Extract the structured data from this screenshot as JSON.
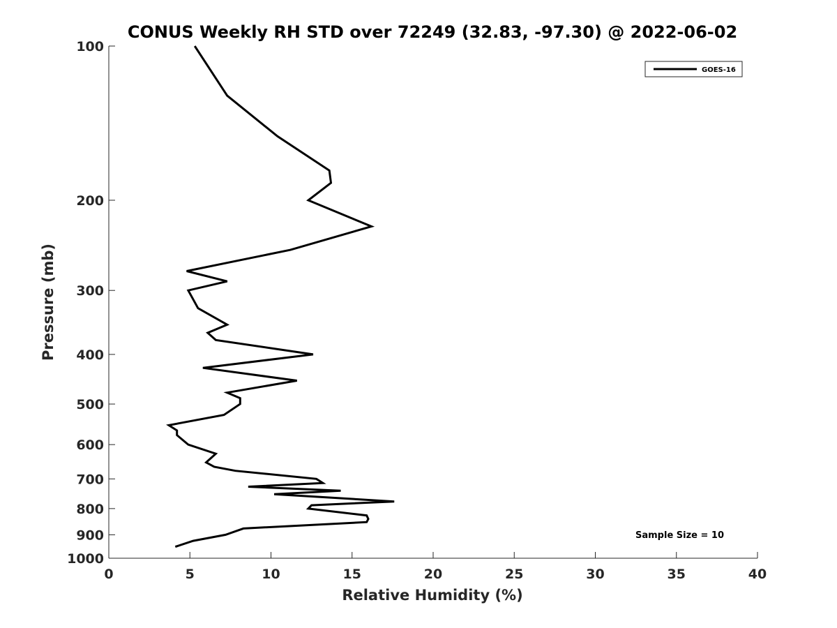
{
  "chart_data": {
    "type": "line",
    "title": "CONUS Weekly RH STD over 72249 (32.83, -97.30) @ 2022-06-02",
    "xlabel": "Relative Humidity (%)",
    "ylabel": "Pressure (mb)",
    "xlim": [
      0,
      40
    ],
    "ylim": [
      100,
      1000
    ],
    "y_scale": "log",
    "y_reversed": true,
    "x_ticks": [
      0,
      5,
      10,
      15,
      20,
      25,
      30,
      35,
      40
    ],
    "y_ticks": [
      100,
      200,
      300,
      400,
      500,
      600,
      700,
      800,
      900,
      1000
    ],
    "grid": false,
    "legend_position": "top-right",
    "line_color": "#000000",
    "annotation": "Sample Size = 10",
    "series": [
      {
        "name": "GOES-16",
        "points": [
          [
            5.3,
            100
          ],
          [
            7.3,
            125
          ],
          [
            10.4,
            150
          ],
          [
            13.6,
            175
          ],
          [
            13.7,
            185
          ],
          [
            12.3,
            200
          ],
          [
            16.2,
            225
          ],
          [
            11.2,
            250
          ],
          [
            4.8,
            275
          ],
          [
            7.3,
            288
          ],
          [
            4.9,
            300
          ],
          [
            5.5,
            325
          ],
          [
            7.3,
            350
          ],
          [
            6.1,
            363
          ],
          [
            6.6,
            375
          ],
          [
            12.6,
            400
          ],
          [
            5.8,
            425
          ],
          [
            11.6,
            450
          ],
          [
            7.3,
            475
          ],
          [
            8.1,
            487
          ],
          [
            8.1,
            500
          ],
          [
            7.1,
            525
          ],
          [
            3.7,
            550
          ],
          [
            4.2,
            563
          ],
          [
            4.2,
            575
          ],
          [
            4.9,
            600
          ],
          [
            6.6,
            625
          ],
          [
            6.0,
            650
          ],
          [
            6.5,
            663
          ],
          [
            7.8,
            675
          ],
          [
            12.8,
            700
          ],
          [
            13.2,
            713
          ],
          [
            8.6,
            725
          ],
          [
            14.3,
            738
          ],
          [
            10.2,
            750
          ],
          [
            17.6,
            775
          ],
          [
            12.5,
            788
          ],
          [
            12.3,
            800
          ],
          [
            15.9,
            825
          ],
          [
            16.0,
            838
          ],
          [
            15.9,
            850
          ],
          [
            8.3,
            875
          ],
          [
            7.2,
            900
          ],
          [
            5.2,
            925
          ],
          [
            4.1,
            950
          ]
        ]
      }
    ]
  }
}
